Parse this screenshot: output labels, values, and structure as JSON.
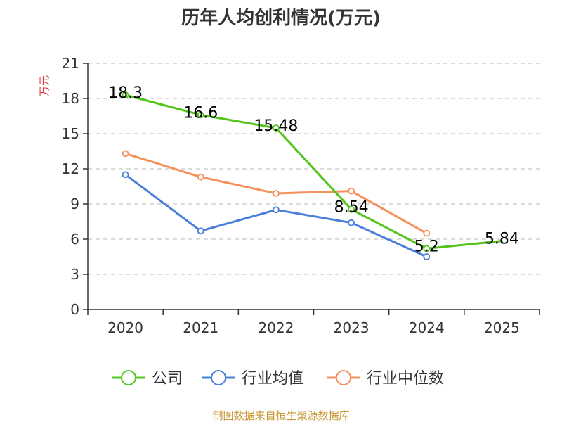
{
  "chart_data": {
    "type": "line",
    "title": "历年人均创利情况(万元)",
    "ylabel": "万元",
    "xlabel": "",
    "categories": [
      "2020",
      "2021",
      "2022",
      "2023",
      "2024",
      "2025"
    ],
    "ylim": [
      0,
      21
    ],
    "yticks": [
      0,
      3,
      6,
      9,
      12,
      15,
      18,
      21
    ],
    "grid": true,
    "legend_position": "bottom",
    "series": [
      {
        "name": "公司",
        "color": "#52c41a",
        "values": [
          18.3,
          16.6,
          15.48,
          8.54,
          5.2,
          5.84
        ],
        "labels": [
          "18.3",
          "16.6",
          "15.48",
          "8.54",
          "5.2",
          "5.84"
        ],
        "markers": [
          true,
          true,
          true,
          true,
          true,
          false
        ]
      },
      {
        "name": "行业均值",
        "color": "#4a7fd9",
        "values": [
          11.5,
          6.7,
          8.5,
          7.4,
          4.5,
          null
        ],
        "labels": null,
        "markers": [
          true,
          true,
          true,
          true,
          true,
          false
        ]
      },
      {
        "name": "行业中位数",
        "color": "#f4915c",
        "values": [
          13.3,
          11.3,
          9.9,
          10.1,
          6.5,
          null
        ],
        "labels": null,
        "markers": [
          true,
          true,
          true,
          true,
          true,
          false
        ]
      }
    ],
    "source": "制图数据来自恒生聚源数据库",
    "colors": {
      "ylabel": "#e03c3c",
      "source": "#c89632",
      "axis": "#333333",
      "grid": "#c8c8c8"
    }
  }
}
